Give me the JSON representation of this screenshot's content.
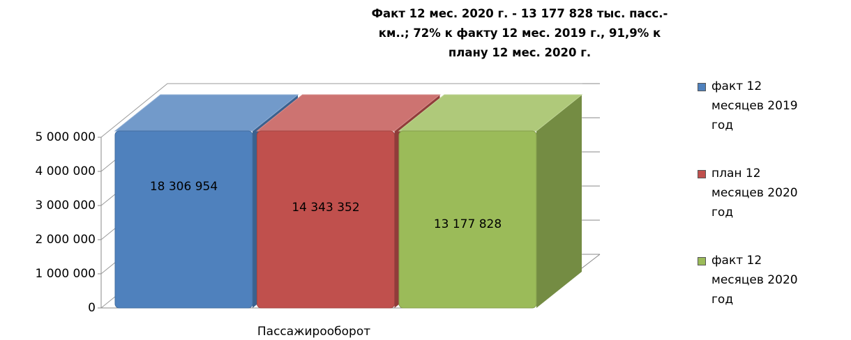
{
  "chart_data": {
    "type": "bar3d",
    "title": "Факт 12 мес. 2020 г. - 13 177 828 тыс. пасс.-км..; 72% к факту 12 мес. 2019 г., 91,9% к плану 12 мес. 2020 г.",
    "categories": [
      "Пассажирооборот"
    ],
    "series": [
      {
        "name": "факт 12 месяцев 2019 год",
        "color": "#4f81bd",
        "values": [
          18306954
        ],
        "value_labels": [
          "18 306 954"
        ]
      },
      {
        "name": "план 12 месяцев 2020 год",
        "color": "#c0504d",
        "values": [
          14343352
        ],
        "value_labels": [
          "14 343 352"
        ]
      },
      {
        "name": "факт 12 месяцев 2020 год",
        "color": "#9bbb59",
        "values": [
          13177828
        ],
        "value_labels": [
          "13 177 828"
        ]
      }
    ],
    "ylim": [
      0,
      5000000
    ],
    "yticks": [
      0,
      {
        "value": 1000000,
        "label": "1 000 000"
      },
      {
        "value": 2000000,
        "label": "2 000 000"
      },
      {
        "value": 3000000,
        "label": "3 000 000"
      },
      {
        "value": 4000000,
        "label": "4 000 000"
      },
      {
        "value": 5000000,
        "label": "5 000 000"
      }
    ],
    "grid": true,
    "legend": "right"
  }
}
